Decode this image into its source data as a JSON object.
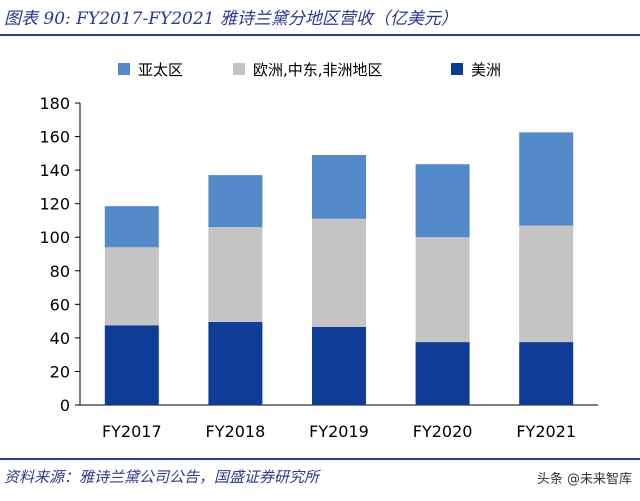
{
  "header": {
    "title": "图表 90:  FY2017-FY2021 雅诗兰黛分地区营收（亿美元）"
  },
  "footer": {
    "source": "资料来源：雅诗兰黛公司公告，国盛证券研究所",
    "watermark": "头条 @未来智库"
  },
  "chart_data": {
    "type": "bar",
    "stacked": true,
    "categories": [
      "FY2017",
      "FY2018",
      "FY2019",
      "FY2020",
      "FY2021"
    ],
    "series": [
      {
        "name": "美洲",
        "color": "#0e3c96",
        "values": [
          47.5,
          49.5,
          46.5,
          37.5,
          37.5
        ]
      },
      {
        "name": "欧洲,中东,非洲地区",
        "color": "#c4c4c4",
        "values": [
          46.5,
          56.5,
          64.5,
          62.5,
          69.5
        ]
      },
      {
        "name": "亚太区",
        "color": "#5388c9",
        "values": [
          24.5,
          31,
          38,
          43.5,
          55.5
        ]
      }
    ],
    "legend_order": [
      "亚太区",
      "欧洲,中东,非洲地区",
      "美洲"
    ],
    "ylim": [
      0,
      180
    ],
    "yticks": [
      0,
      20,
      40,
      60,
      80,
      100,
      120,
      140,
      160,
      180
    ],
    "grid": false,
    "legend": "top"
  }
}
